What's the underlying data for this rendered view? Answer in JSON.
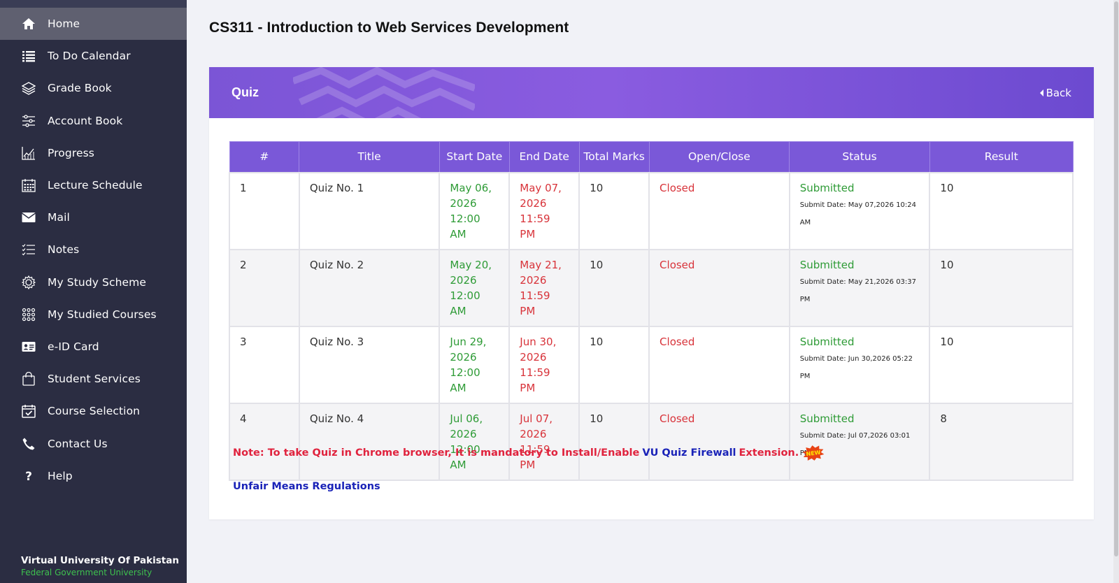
{
  "sidebar": {
    "items": [
      {
        "label": "Home",
        "icon": "home-icon",
        "active": true
      },
      {
        "label": "To Do Calendar",
        "icon": "list-icon"
      },
      {
        "label": "Grade Book",
        "icon": "layers-icon"
      },
      {
        "label": "Account Book",
        "icon": "sliders-icon"
      },
      {
        "label": "Progress",
        "icon": "chart-icon"
      },
      {
        "label": "Lecture Schedule",
        "icon": "calendar-grid-icon"
      },
      {
        "label": "Mail",
        "icon": "mail-icon"
      },
      {
        "label": "Notes",
        "icon": "checklist-icon"
      },
      {
        "label": "My Study Scheme",
        "icon": "gear-icon"
      },
      {
        "label": "My Studied Courses",
        "icon": "dots-grid-icon"
      },
      {
        "label": "e-ID Card",
        "icon": "id-card-icon"
      },
      {
        "label": "Student Services",
        "icon": "bag-icon"
      },
      {
        "label": "Course Selection",
        "icon": "calendar-check-icon"
      },
      {
        "label": "Contact Us",
        "icon": "phone-icon"
      },
      {
        "label": "Help",
        "icon": "question-icon"
      }
    ],
    "footer": {
      "title": "Virtual University Of Pakistan",
      "subtitle": "Federal Government University"
    }
  },
  "page": {
    "title": "CS311 - Introduction to Web Services Development"
  },
  "panel": {
    "title": "Quiz",
    "back_label": "Back"
  },
  "table": {
    "headers": [
      "#",
      "Title",
      "Start Date",
      "End Date",
      "Total Marks",
      "Open/Close",
      "Status",
      "Result"
    ],
    "rows": [
      {
        "num": "1",
        "title": "Quiz No. 1",
        "start": [
          "May 06,",
          "2026",
          "12:00 AM"
        ],
        "end": [
          "May 07,",
          "2026",
          "11:59 PM"
        ],
        "marks": "10",
        "open_close": "Closed",
        "status": "Submitted",
        "submit_date": "Submit Date: May 07,2026 10:24 AM",
        "result": "10"
      },
      {
        "num": "2",
        "title": "Quiz No. 2",
        "start": [
          "May 20,",
          "2026",
          "12:00 AM"
        ],
        "end": [
          "May 21,",
          "2026",
          "11:59 PM"
        ],
        "marks": "10",
        "open_close": "Closed",
        "status": "Submitted",
        "submit_date": "Submit Date: May 21,2026 03:37 PM",
        "result": "10"
      },
      {
        "num": "3",
        "title": "Quiz No. 3",
        "start": [
          "Jun 29,",
          "2026",
          "12:00 AM"
        ],
        "end": [
          "Jun 30,",
          "2026",
          "11:59 PM"
        ],
        "marks": "10",
        "open_close": "Closed",
        "status": "Submitted",
        "submit_date": "Submit Date: Jun 30,2026 05:22 PM",
        "result": "10"
      },
      {
        "num": "4",
        "title": "Quiz No. 4",
        "start": [
          "Jul 06,",
          "2026",
          "12:00 AM"
        ],
        "end": [
          "Jul 07,",
          "2026",
          "11:59 PM"
        ],
        "marks": "10",
        "open_close": "Closed",
        "status": "Submitted",
        "submit_date": "Submit Date: Jul 07,2026 03:01 PM",
        "result": "8"
      }
    ]
  },
  "note": {
    "prefix": "Note: To take Quiz in Chrome browser, It is mandatory to Install/Enable",
    "link": "VU Quiz Firewall",
    "suffix": "Extension.",
    "badge": "NEW"
  },
  "regulations_link": "Unfair Means Regulations",
  "colors": {
    "sidebar_bg": "#2b2d42",
    "accent_purple": "#7a58d8",
    "green": "#2e9b36",
    "red": "#d8333a",
    "link_blue": "#1a23b8"
  }
}
